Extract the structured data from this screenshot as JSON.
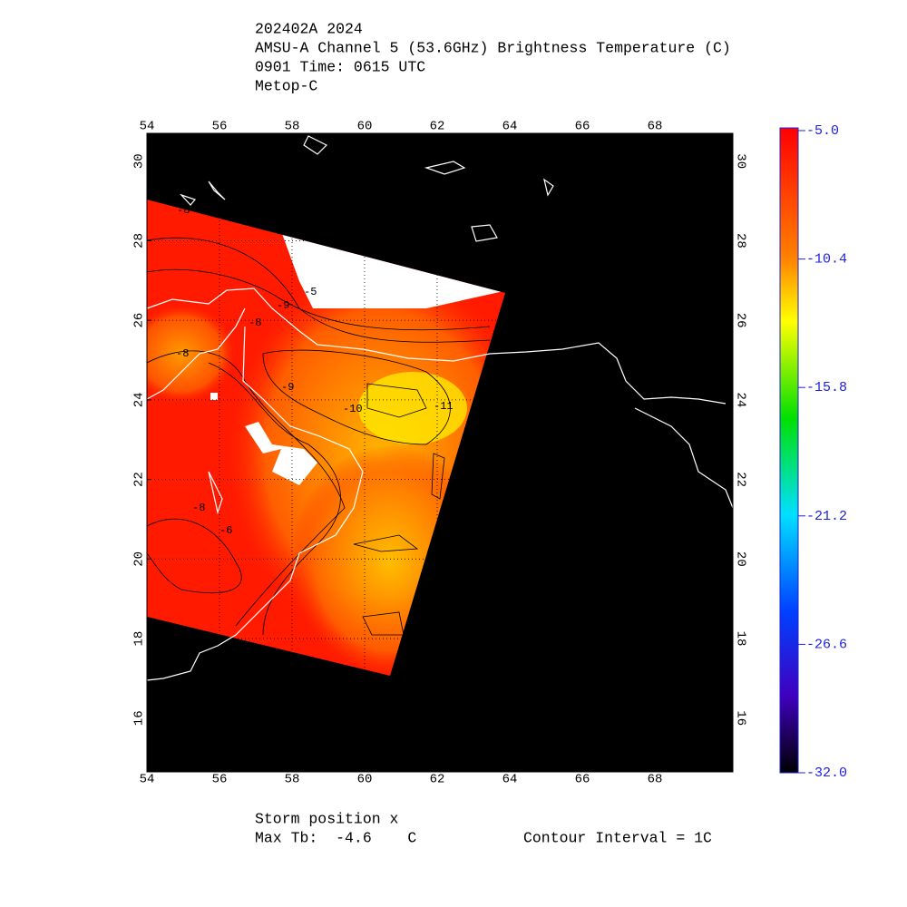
{
  "header": {
    "lines": [
      "202402A 2024",
      "AMSU-A Channel 5 (53.6GHz) Brightness Temperature (C)",
      "0901 Time: 0615 UTC",
      "Metop-C"
    ]
  },
  "map": {
    "lonlim": [
      54,
      70.15
    ],
    "latlim": [
      14.65,
      30.7
    ],
    "lonticks": [
      54,
      56,
      58,
      60,
      62,
      64,
      66,
      68
    ],
    "latticks": [
      16,
      18,
      20,
      22,
      24,
      26,
      28,
      30
    ],
    "contour_labels": [
      -8,
      -5,
      -9,
      -8,
      -8,
      -9,
      -10,
      -11,
      -8,
      -6
    ]
  },
  "colorbar": {
    "lim": [
      -32,
      -5
    ],
    "ticks": [
      {
        "value": -5,
        "label": "-5.0"
      },
      -10.4,
      -15.8,
      -21.2,
      -26.6,
      {
        "value": -32,
        "label": "-32.0"
      }
    ]
  },
  "footer": {
    "storm": "Storm position x",
    "max_tb": "Max Tb:  -4.6    C",
    "interval": "Contour Interval = 1C"
  }
}
